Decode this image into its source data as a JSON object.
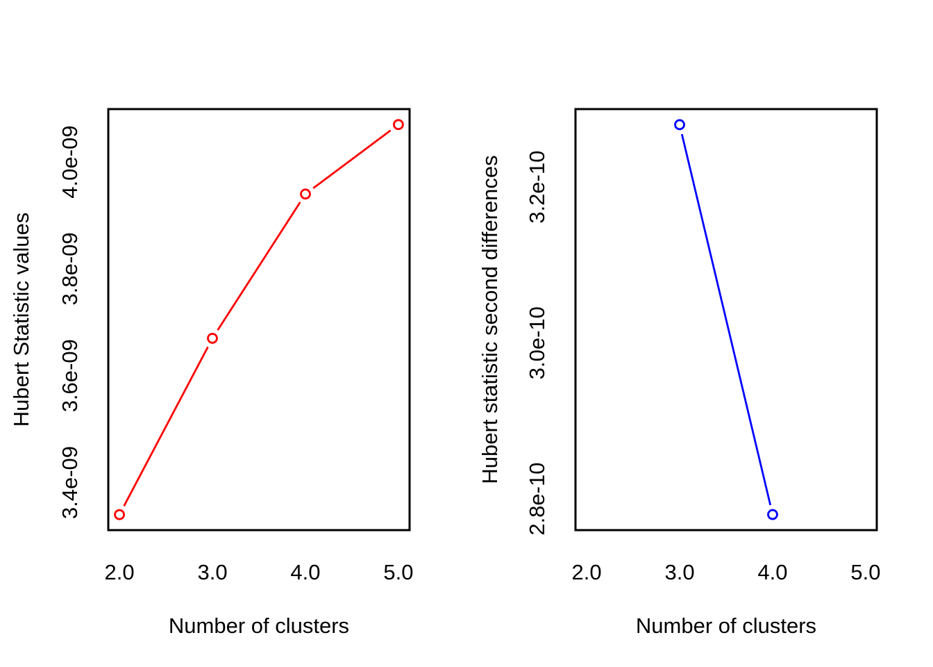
{
  "figure": {
    "background": "#ffffff",
    "description": "Two R base-graphics line plots of Hubert statistic for cluster number selection"
  },
  "chart_data": [
    {
      "type": "line",
      "title": "",
      "xlabel": "Number of clusters",
      "ylabel": "Hubert Statistic values",
      "xlim": [
        1.88,
        5.12
      ],
      "ylim": [
        3.311e-09,
        4.099e-09
      ],
      "grid": false,
      "legend": null,
      "box": true,
      "tick_marks": false,
      "xticks": {
        "values": [
          2,
          3,
          4,
          5
        ],
        "labels": [
          "2.0",
          "3.0",
          "4.0",
          "5.0"
        ]
      },
      "yticks": {
        "values": [
          3.4e-09,
          3.6e-09,
          3.8e-09,
          4e-09
        ],
        "labels": [
          "3.4e-09",
          "3.6e-09",
          "3.8e-09",
          "4.0e-09"
        ]
      },
      "series": [
        {
          "name": "Hubert statistic",
          "color": "#ff0000",
          "marker": "open-circle",
          "line_style": "points-and-lines",
          "x": [
            2,
            3,
            4,
            5
          ],
          "y": [
            3.34e-09,
            3.67e-09,
            3.94e-09,
            4.07e-09
          ]
        }
      ]
    },
    {
      "type": "line",
      "title": "",
      "xlabel": "Number of clusters",
      "ylabel": "Hubert statistic second differences",
      "xlim": [
        1.88,
        5.12
      ],
      "ylim": [
        2.76e-10,
        3.3e-10
      ],
      "grid": false,
      "legend": null,
      "box": true,
      "tick_marks": false,
      "xticks": {
        "values": [
          2,
          3,
          4,
          5
        ],
        "labels": [
          "2.0",
          "3.0",
          "4.0",
          "5.0"
        ]
      },
      "yticks": {
        "values": [
          2.8e-10,
          3e-10,
          3.2e-10
        ],
        "labels": [
          "2.8e-10",
          "3.0e-10",
          "3.2e-10"
        ]
      },
      "series": [
        {
          "name": "Hubert statistic second differences",
          "color": "#0000ff",
          "marker": "open-circle",
          "line_style": "points-and-lines",
          "x": [
            3,
            4
          ],
          "y": [
            3.28e-10,
            2.78e-10
          ]
        }
      ]
    }
  ]
}
